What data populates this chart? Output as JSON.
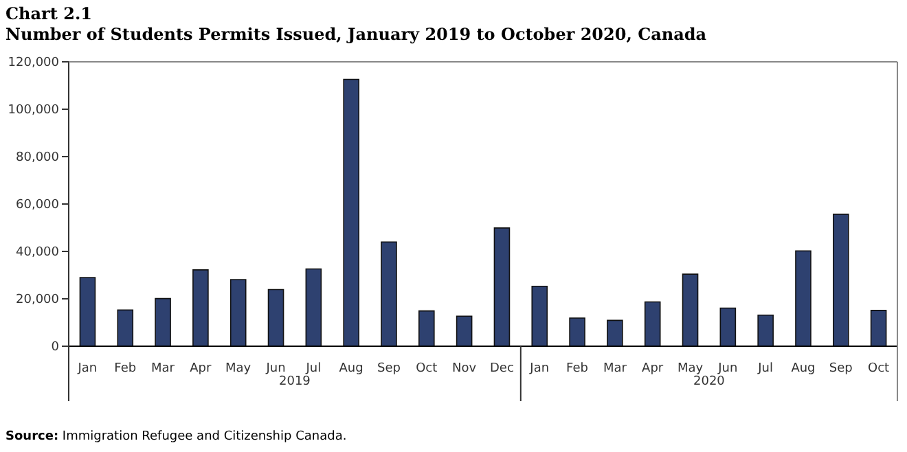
{
  "chart_data": {
    "type": "bar",
    "title": "Chart 2.1",
    "subtitle": "Number of Students Permits Issued, January 2019 to October 2020, Canada",
    "categories": [
      "Jan",
      "Feb",
      "Mar",
      "Apr",
      "May",
      "Jun",
      "Jul",
      "Aug",
      "Sep",
      "Oct",
      "Nov",
      "Dec",
      "Jan",
      "Feb",
      "Mar",
      "Apr",
      "May",
      "Jun",
      "Jul",
      "Aug",
      "Sep",
      "Oct"
    ],
    "values": [
      29000,
      15300,
      20100,
      32200,
      28100,
      23900,
      32600,
      112600,
      44000,
      14900,
      12700,
      49900,
      25300,
      11900,
      10900,
      18700,
      30400,
      16100,
      13100,
      40200,
      55700,
      15100
    ],
    "color": "#2e4170",
    "ylim": [
      0,
      120000
    ],
    "yticks": [
      0,
      {
        "value": 20000,
        "label": "20,000"
      },
      {
        "value": 40000,
        "label": "40,000"
      },
      {
        "value": 60000,
        "label": "60,000"
      },
      {
        "value": 80000,
        "label": "80,000"
      },
      {
        "value": 100000,
        "label": "100,000"
      },
      {
        "value": 120000,
        "label": "120,000"
      }
    ],
    "grid": false,
    "annotations": [
      "2019",
      "2020",
      "Source: Immigration Refugee and Citizenship Canada."
    ]
  }
}
